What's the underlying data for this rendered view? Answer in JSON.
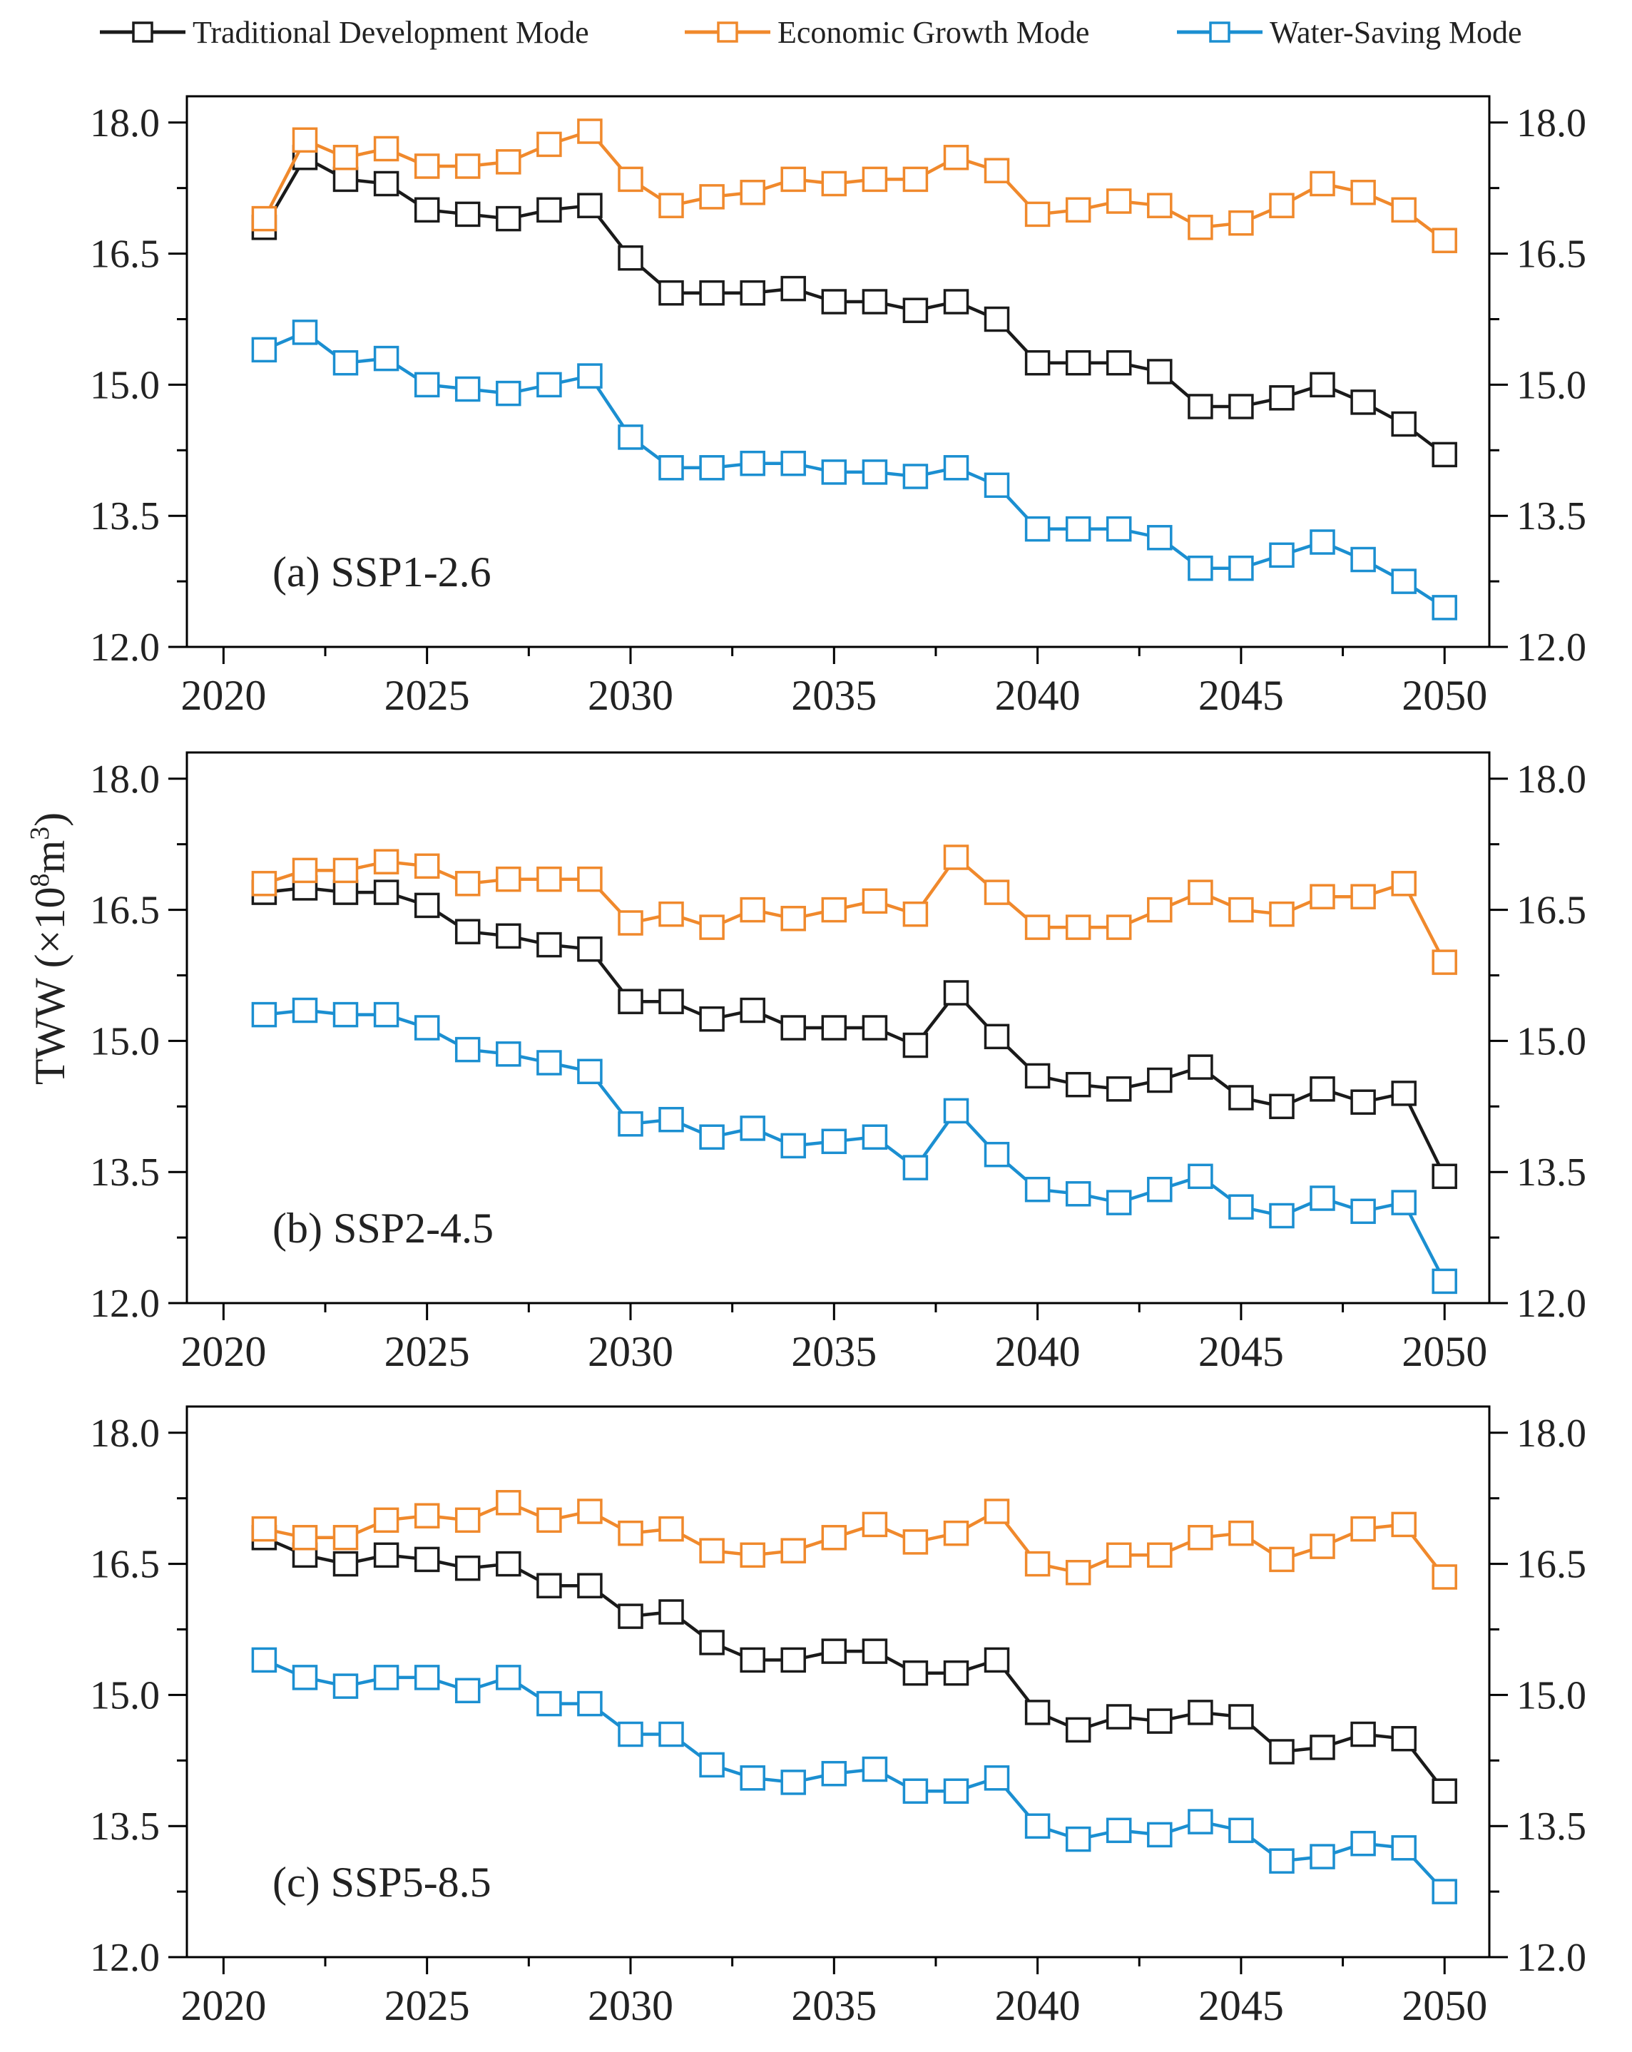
{
  "chart_data": {
    "type": "line",
    "ylabel_main": "TWW",
    "ylabel_unit": "(×10",
    "ylabel_exp1": "8",
    "ylabel_m": "m",
    "ylabel_exp2": "3",
    "ylabel_close": ")",
    "legend": [
      {
        "name": "Traditional Development Mode",
        "color": "#1a1a1a"
      },
      {
        "name": "Economic Growth Mode",
        "color": "#f0892c"
      },
      {
        "name": "Water-Saving Mode",
        "color": "#1b8fd1"
      }
    ],
    "x": [
      2021,
      2022,
      2023,
      2024,
      2025,
      2026,
      2027,
      2028,
      2029,
      2030,
      2031,
      2032,
      2033,
      2034,
      2035,
      2036,
      2037,
      2038,
      2039,
      2040,
      2041,
      2042,
      2043,
      2044,
      2045,
      2046,
      2047,
      2048,
      2049,
      2050
    ],
    "xticks": [
      2020,
      2025,
      2030,
      2035,
      2040,
      2045,
      2050
    ],
    "xlim": [
      2019.1,
      2051.1
    ],
    "ylim": [
      12.0,
      18.3
    ],
    "yticks": [
      12.0,
      13.5,
      15.0,
      16.5,
      18.0
    ],
    "yticks_minor": [
      12.75,
      14.25,
      15.75,
      17.25
    ],
    "panels": [
      {
        "label": "(a) SSP1-2.6",
        "series": [
          {
            "name": "Traditional Development Mode",
            "values": [
              16.8,
              17.6,
              17.35,
              17.3,
              17.0,
              16.95,
              16.9,
              17.0,
              17.05,
              16.45,
              16.05,
              16.05,
              16.05,
              16.1,
              15.95,
              15.95,
              15.85,
              15.95,
              15.75,
              15.25,
              15.25,
              15.25,
              15.15,
              14.75,
              14.75,
              14.85,
              15.0,
              14.8,
              14.55,
              14.2
            ]
          },
          {
            "name": "Economic Growth Mode",
            "values": [
              16.9,
              17.8,
              17.6,
              17.7,
              17.5,
              17.5,
              17.55,
              17.75,
              17.9,
              17.35,
              17.05,
              17.15,
              17.2,
              17.35,
              17.3,
              17.35,
              17.35,
              17.6,
              17.45,
              16.95,
              17.0,
              17.1,
              17.05,
              16.8,
              16.85,
              17.05,
              17.3,
              17.2,
              17.0,
              16.65
            ]
          },
          {
            "name": "Water-Saving Mode",
            "values": [
              15.4,
              15.6,
              15.25,
              15.3,
              15.0,
              14.95,
              14.9,
              15.0,
              15.1,
              14.4,
              14.05,
              14.05,
              14.1,
              14.1,
              14.0,
              14.0,
              13.95,
              14.05,
              13.85,
              13.35,
              13.35,
              13.35,
              13.25,
              12.9,
              12.9,
              13.05,
              13.2,
              13.0,
              12.75,
              12.45
            ]
          }
        ]
      },
      {
        "label": "(b) SSP2-4.5",
        "series": [
          {
            "name": "Traditional Development Mode",
            "values": [
              16.7,
              16.75,
              16.7,
              16.7,
              16.55,
              16.25,
              16.2,
              16.1,
              16.05,
              15.45,
              15.45,
              15.25,
              15.35,
              15.15,
              15.15,
              15.15,
              14.95,
              15.55,
              15.05,
              14.6,
              14.5,
              14.45,
              14.55,
              14.7,
              14.35,
              14.25,
              14.45,
              14.3,
              14.4,
              13.45
            ]
          },
          {
            "name": "Economic Growth Mode",
            "values": [
              16.8,
              16.95,
              16.95,
              17.05,
              17.0,
              16.8,
              16.85,
              16.85,
              16.85,
              16.35,
              16.45,
              16.3,
              16.5,
              16.4,
              16.5,
              16.6,
              16.45,
              17.1,
              16.7,
              16.3,
              16.3,
              16.3,
              16.5,
              16.7,
              16.5,
              16.45,
              16.65,
              16.65,
              16.8,
              15.9
            ]
          },
          {
            "name": "Water-Saving Mode",
            "values": [
              15.3,
              15.35,
              15.3,
              15.3,
              15.15,
              14.9,
              14.85,
              14.75,
              14.65,
              14.05,
              14.1,
              13.9,
              14.0,
              13.8,
              13.85,
              13.9,
              13.55,
              14.2,
              13.7,
              13.3,
              13.25,
              13.15,
              13.3,
              13.45,
              13.1,
              13.0,
              13.2,
              13.05,
              13.15,
              12.25
            ]
          }
        ]
      },
      {
        "label": "(c) SSP5-8.5",
        "series": [
          {
            "name": "Traditional Development Mode",
            "values": [
              16.8,
              16.6,
              16.5,
              16.6,
              16.55,
              16.45,
              16.5,
              16.25,
              16.25,
              15.9,
              15.95,
              15.6,
              15.4,
              15.4,
              15.5,
              15.5,
              15.25,
              15.25,
              15.4,
              14.8,
              14.6,
              14.75,
              14.7,
              14.8,
              14.75,
              14.35,
              14.4,
              14.55,
              14.5,
              13.9
            ]
          },
          {
            "name": "Economic Growth Mode",
            "values": [
              16.9,
              16.8,
              16.8,
              17.0,
              17.05,
              17.0,
              17.2,
              17.0,
              17.1,
              16.85,
              16.9,
              16.65,
              16.6,
              16.65,
              16.8,
              16.95,
              16.75,
              16.85,
              17.1,
              16.5,
              16.4,
              16.6,
              16.6,
              16.8,
              16.85,
              16.55,
              16.7,
              16.9,
              16.95,
              16.35
            ]
          },
          {
            "name": "Water-Saving Mode",
            "values": [
              15.4,
              15.2,
              15.1,
              15.2,
              15.2,
              15.05,
              15.2,
              14.9,
              14.9,
              14.55,
              14.55,
              14.2,
              14.05,
              14.0,
              14.1,
              14.15,
              13.9,
              13.9,
              14.05,
              13.5,
              13.35,
              13.45,
              13.4,
              13.55,
              13.45,
              13.1,
              13.15,
              13.3,
              13.25,
              12.75
            ]
          }
        ]
      }
    ]
  }
}
